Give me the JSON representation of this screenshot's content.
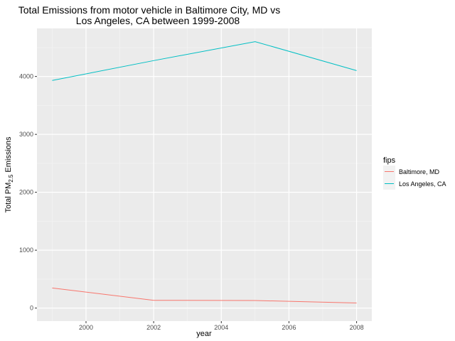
{
  "chart_data": {
    "type": "line",
    "title_line1": "Total Emissions from motor vehicle in Baltimore City, MD vs",
    "title_line2": "Los Angeles, CA between 1999-2008",
    "xlabel": "year",
    "ylabel_prefix": "Total PM",
    "ylabel_sub": "2.5",
    "ylabel_suffix": " Emissions",
    "x": [
      1999,
      2002,
      2005,
      2008
    ],
    "xlim": [
      1998.55,
      2008.45
    ],
    "ylim": [
      -225,
      4830
    ],
    "xticks": [
      2000,
      2002,
      2004,
      2006,
      2008
    ],
    "yticks": [
      0,
      1000,
      2000,
      3000,
      4000
    ],
    "grid": true,
    "legend_title": "fips",
    "legend_position": "right",
    "series": [
      {
        "name": "Baltimore, MD",
        "color": "#F8766D",
        "values": [
          346.8,
          134.3,
          130.4,
          88.3
        ]
      },
      {
        "name": "Los Angeles, CA",
        "color": "#00BFC4",
        "values": [
          3931.1,
          4274.0,
          4601.4,
          4101.3
        ]
      }
    ]
  }
}
